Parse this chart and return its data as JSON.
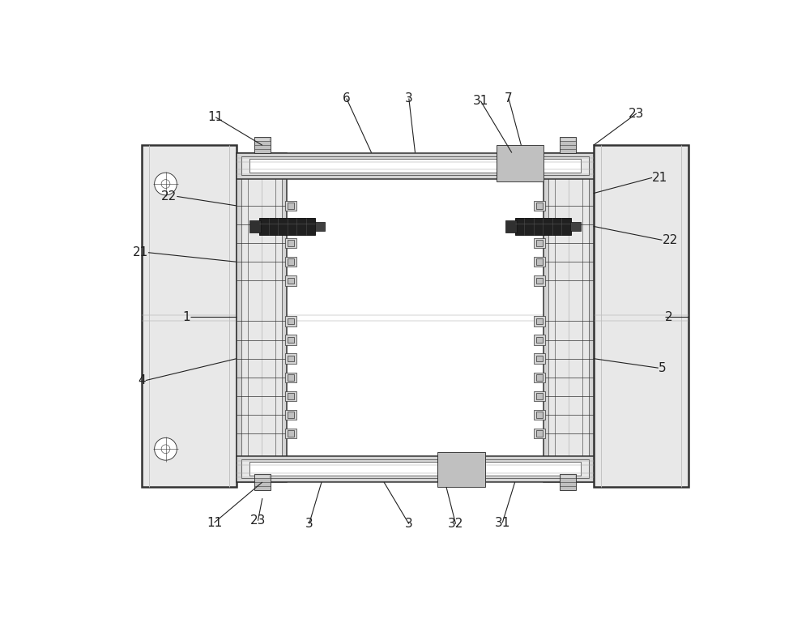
{
  "bg_color": "#ffffff",
  "lc": "#555555",
  "lc_dark": "#333333",
  "gray1": "#e8e8e8",
  "gray2": "#d4d4d4",
  "gray3": "#c0c0c0",
  "gray4": "#a8a8a8",
  "black_part": "#1a1a1a",
  "ann": "#222222",
  "figsize": [
    10.0,
    7.69
  ],
  "dpi": 100,
  "lw_outer": 1.8,
  "lw_med": 1.1,
  "lw_thin": 0.65,
  "lw_xthin": 0.4,
  "fs_label": 11
}
